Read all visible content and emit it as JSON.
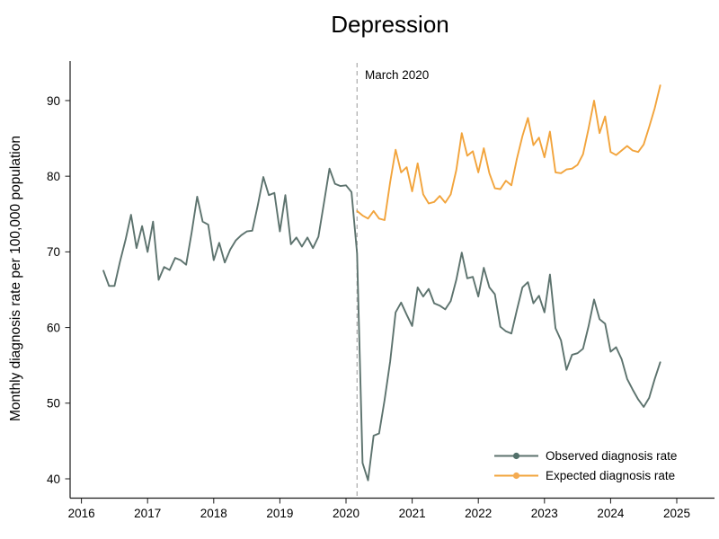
{
  "chart_data": {
    "type": "line",
    "title": "Depression",
    "xlabel": "",
    "ylabel": "Monthly diagnosis rate per 100,000 population",
    "xlim": [
      2016,
      2025.3
    ],
    "ylim": [
      40,
      93
    ],
    "x_ticks": [
      2016,
      2017,
      2018,
      2019,
      2020,
      2021,
      2022,
      2023,
      2024,
      2025
    ],
    "y_ticks": [
      40,
      50,
      60,
      70,
      80,
      90
    ],
    "grid": false,
    "annotation": {
      "label": "March 2020",
      "x": "2020-03"
    },
    "legend": {
      "position": "lower right"
    },
    "series": [
      {
        "name": "Observed diagnosis rate",
        "color": "#5d736e",
        "marker_color": "#52706a",
        "start": "2016-05",
        "values": [
          67.5,
          65.5,
          65.5,
          68.7,
          71.6,
          74.9,
          70.5,
          73.4,
          70.0,
          74.0,
          66.3,
          68.0,
          67.6,
          69.2,
          68.9,
          68.3,
          72.6,
          77.3,
          74.0,
          73.6,
          68.9,
          71.2,
          68.6,
          70.3,
          71.5,
          72.2,
          72.7,
          72.8,
          76.2,
          79.9,
          77.5,
          77.8,
          72.7,
          77.5,
          71.0,
          71.9,
          70.7,
          71.9,
          70.5,
          72.0,
          76.5,
          81.0,
          79.0,
          78.7,
          78.8,
          77.9,
          69.8,
          42.1,
          39.8,
          45.7,
          46.0,
          50.4,
          55.5,
          62.0,
          63.3,
          61.7,
          60.2,
          65.3,
          64.1,
          65.1,
          63.2,
          62.9,
          62.4,
          63.5,
          66.3,
          69.9,
          66.5,
          66.7,
          64.1,
          67.9,
          65.3,
          64.4,
          60.1,
          59.5,
          59.2,
          62.3,
          65.3,
          66.0,
          63.2,
          64.2,
          62.0,
          67.0,
          59.9,
          58.3,
          54.4,
          56.4,
          56.6,
          57.2,
          60.2,
          63.7,
          61.1,
          60.5,
          56.8,
          57.4,
          55.8,
          53.2,
          51.8,
          50.5,
          49.5,
          50.7,
          53.2,
          55.4
        ]
      },
      {
        "name": "Expected diagnosis rate",
        "color": "#f2a43c",
        "marker_color": "#f4ab52",
        "start": "2020-03",
        "values": [
          75.4,
          74.8,
          74.4,
          75.4,
          74.4,
          74.2,
          79.2,
          83.5,
          80.5,
          81.2,
          78.0,
          81.7,
          77.6,
          76.4,
          76.6,
          77.4,
          76.5,
          77.6,
          80.8,
          85.7,
          82.7,
          83.3,
          80.5,
          83.7,
          80.4,
          78.4,
          78.3,
          79.4,
          78.8,
          82.3,
          85.3,
          87.7,
          84.1,
          85.1,
          82.5,
          85.9,
          80.5,
          80.4,
          80.9,
          81.0,
          81.5,
          82.9,
          86.3,
          90.0,
          85.7,
          87.9,
          83.2,
          82.8,
          83.4,
          84.0,
          83.4,
          83.2,
          84.2,
          86.5,
          89.0,
          92.0
        ]
      }
    ]
  }
}
